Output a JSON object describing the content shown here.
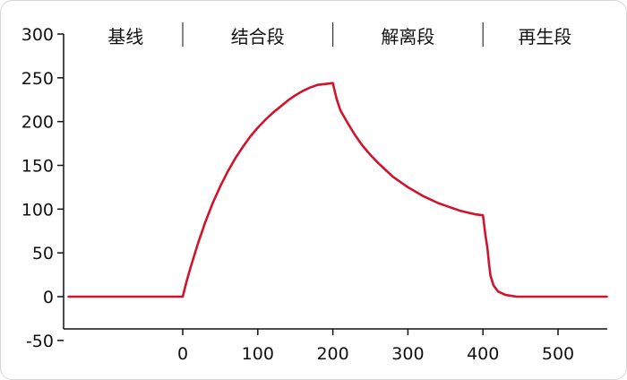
{
  "chart_data": {
    "type": "line",
    "title": "",
    "xlabel": "",
    "ylabel": "",
    "xlim": [
      -152,
      565
    ],
    "ylim": [
      -50,
      300
    ],
    "x_ticks": [
      0,
      100,
      200,
      300,
      400,
      500
    ],
    "y_ticks": [
      300,
      250,
      200,
      150,
      100,
      50,
      0,
      -50
    ],
    "phases": [
      {
        "label": "基线",
        "x_start": -152,
        "x_end": 0
      },
      {
        "label": "结合段",
        "x_start": 0,
        "x_end": 200
      },
      {
        "label": "解离段",
        "x_start": 200,
        "x_end": 400
      },
      {
        "label": "再生段",
        "x_start": 400,
        "x_end": 565
      }
    ],
    "series": [
      {
        "color": "#d0142c",
        "points": [
          [
            -152,
            0
          ],
          [
            0,
            0
          ],
          [
            5,
            17
          ],
          [
            10,
            32
          ],
          [
            20,
            60
          ],
          [
            30,
            85
          ],
          [
            40,
            107
          ],
          [
            50,
            126
          ],
          [
            60,
            143
          ],
          [
            70,
            158
          ],
          [
            80,
            171
          ],
          [
            90,
            183
          ],
          [
            100,
            193
          ],
          [
            110,
            202
          ],
          [
            120,
            210
          ],
          [
            130,
            217
          ],
          [
            140,
            224
          ],
          [
            150,
            230
          ],
          [
            160,
            235
          ],
          [
            170,
            239
          ],
          [
            180,
            242
          ],
          [
            190,
            243
          ],
          [
            200,
            244
          ],
          [
            205,
            226
          ],
          [
            210,
            213
          ],
          [
            220,
            198
          ],
          [
            230,
            184
          ],
          [
            240,
            172
          ],
          [
            250,
            162
          ],
          [
            260,
            153
          ],
          [
            270,
            145
          ],
          [
            280,
            137
          ],
          [
            290,
            131
          ],
          [
            300,
            125
          ],
          [
            310,
            120
          ],
          [
            320,
            115
          ],
          [
            330,
            111
          ],
          [
            340,
            107
          ],
          [
            350,
            104
          ],
          [
            360,
            101
          ],
          [
            370,
            98
          ],
          [
            380,
            96
          ],
          [
            390,
            94
          ],
          [
            400,
            93
          ],
          [
            403,
            72
          ],
          [
            406,
            55
          ],
          [
            408,
            38
          ],
          [
            410,
            24
          ],
          [
            414,
            13
          ],
          [
            420,
            6
          ],
          [
            430,
            2
          ],
          [
            445,
            0
          ],
          [
            565,
            0
          ]
        ]
      }
    ]
  }
}
